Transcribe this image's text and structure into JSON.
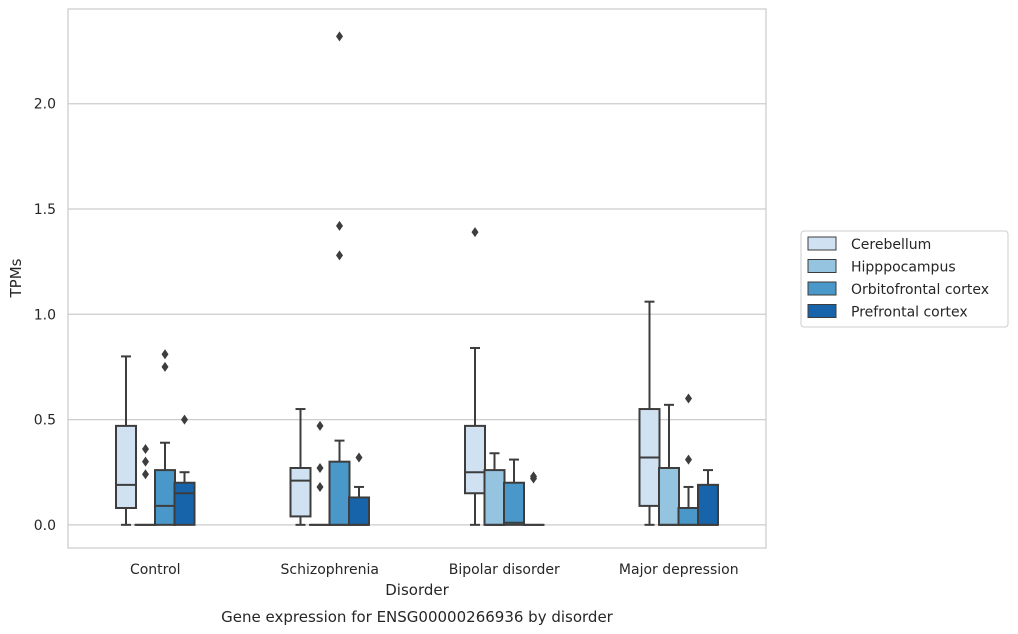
{
  "chart_data": {
    "type": "boxplot",
    "title": "",
    "xlabel": "Disorder",
    "ylabel": "TPMs",
    "caption": "Gene expression for ENSG00000266936 by disorder",
    "ylim": [
      -0.11,
      2.45
    ],
    "yticks": [
      0.0,
      0.5,
      1.0,
      1.5,
      2.0
    ],
    "ytick_labels": [
      "0.0",
      "0.5",
      "1.0",
      "1.5",
      "2.0"
    ],
    "grid": "horizontal",
    "legend_position": "right",
    "categories": [
      "Control",
      "Schizophrenia",
      "Bipolar disorder",
      "Major depression"
    ],
    "series": [
      {
        "name": "Cerebellum",
        "color": "#d0e1f2",
        "boxes": [
          {
            "whislo": 0.0,
            "q1": 0.08,
            "med": 0.19,
            "q3": 0.47,
            "whishi": 0.8,
            "fliers": []
          },
          {
            "whislo": 0.0,
            "q1": 0.04,
            "med": 0.21,
            "q3": 0.27,
            "whishi": 0.55,
            "fliers": []
          },
          {
            "whislo": 0.0,
            "q1": 0.15,
            "med": 0.25,
            "q3": 0.47,
            "whishi": 0.84,
            "fliers": [
              1.39
            ]
          },
          {
            "whislo": 0.0,
            "q1": 0.09,
            "med": 0.32,
            "q3": 0.55,
            "whishi": 1.06,
            "fliers": []
          }
        ]
      },
      {
        "name": "Hipppocampus",
        "color": "#94c4df",
        "boxes": [
          {
            "whislo": 0.0,
            "q1": 0.0,
            "med": 0.0,
            "q3": 0.0,
            "whishi": 0.0,
            "fliers": [
              0.24,
              0.3,
              0.36
            ]
          },
          {
            "whislo": 0.0,
            "q1": 0.0,
            "med": 0.0,
            "q3": 0.0,
            "whishi": 0.0,
            "fliers": [
              0.18,
              0.27,
              0.47
            ]
          },
          {
            "whislo": 0.0,
            "q1": 0.0,
            "med": 0.0,
            "q3": 0.26,
            "whishi": 0.34,
            "fliers": []
          },
          {
            "whislo": 0.0,
            "q1": 0.0,
            "med": 0.0,
            "q3": 0.27,
            "whishi": 0.57,
            "fliers": []
          }
        ]
      },
      {
        "name": "Orbitofrontal cortex",
        "color": "#4a98c9",
        "boxes": [
          {
            "whislo": 0.0,
            "q1": 0.0,
            "med": 0.09,
            "q3": 0.26,
            "whishi": 0.39,
            "fliers": [
              0.75,
              0.81
            ]
          },
          {
            "whislo": 0.0,
            "q1": 0.0,
            "med": 0.0,
            "q3": 0.3,
            "whishi": 0.4,
            "fliers": [
              1.28,
              1.42,
              2.32
            ]
          },
          {
            "whislo": 0.0,
            "q1": 0.0,
            "med": 0.01,
            "q3": 0.2,
            "whishi": 0.31,
            "fliers": []
          },
          {
            "whislo": 0.0,
            "q1": 0.0,
            "med": 0.0,
            "q3": 0.08,
            "whishi": 0.18,
            "fliers": [
              0.31,
              0.6
            ]
          }
        ]
      },
      {
        "name": "Prefrontal cortex",
        "color": "#1764ab",
        "boxes": [
          {
            "whislo": 0.0,
            "q1": 0.0,
            "med": 0.15,
            "q3": 0.2,
            "whishi": 0.25,
            "fliers": [
              0.5
            ]
          },
          {
            "whislo": 0.0,
            "q1": 0.0,
            "med": 0.0,
            "q3": 0.13,
            "whishi": 0.18,
            "fliers": [
              0.32
            ]
          },
          {
            "whislo": 0.0,
            "q1": 0.0,
            "med": 0.0,
            "q3": 0.0,
            "whishi": 0.0,
            "fliers": [
              0.22,
              0.23
            ]
          },
          {
            "whislo": 0.0,
            "q1": 0.0,
            "med": 0.0,
            "q3": 0.19,
            "whishi": 0.26,
            "fliers": []
          }
        ]
      }
    ]
  }
}
